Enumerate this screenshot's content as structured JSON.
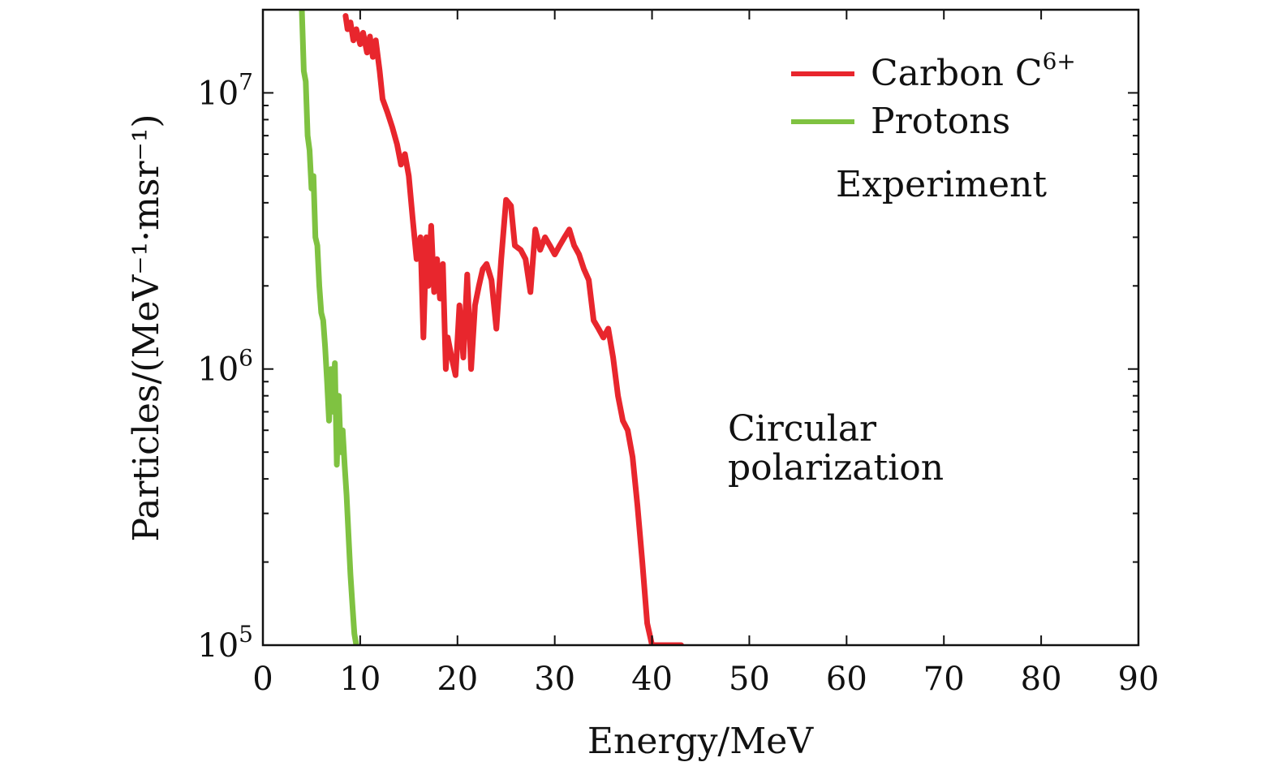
{
  "chart_data": {
    "type": "line",
    "title": "",
    "xlabel": "Energy/MeV",
    "ylabel": "Particles/(MeV⁻¹·msr⁻¹)",
    "xlim": [
      0,
      90
    ],
    "ylim": [
      100000,
      20000000
    ],
    "y_scale": "log",
    "x_ticks": [
      0,
      10,
      20,
      30,
      40,
      50,
      60,
      70,
      80,
      90
    ],
    "y_ticks": [
      {
        "value": 100000,
        "base": "10",
        "exp": "5"
      },
      {
        "value": 1000000,
        "base": "10",
        "exp": "6"
      },
      {
        "value": 10000000,
        "base": "10",
        "exp": "7"
      }
    ],
    "grid": false,
    "legend_position": "top-right",
    "annotations": [
      "Experiment",
      "Circular",
      "polarization"
    ],
    "series": [
      {
        "name": "Carbon C",
        "name_sup": "6+",
        "color": "#e8262d",
        "x": [
          8.5,
          8.7,
          9.0,
          9.3,
          9.6,
          10.0,
          10.3,
          10.7,
          11.0,
          11.3,
          11.6,
          12.0,
          12.3,
          12.8,
          13.3,
          13.8,
          14.2,
          14.6,
          15.0,
          15.4,
          15.8,
          16.2,
          16.5,
          16.8,
          17.0,
          17.3,
          17.6,
          17.9,
          18.2,
          18.5,
          18.8,
          19.0,
          19.4,
          19.8,
          20.2,
          20.6,
          21.0,
          21.4,
          21.8,
          22.2,
          22.6,
          23.0,
          23.5,
          24.0,
          24.5,
          25.0,
          25.5,
          25.9,
          26.5,
          27.0,
          27.5,
          28.0,
          28.5,
          29.0,
          29.5,
          30.0,
          30.5,
          31.0,
          31.5,
          32.0,
          32.5,
          33.0,
          33.5,
          34.0,
          34.5,
          35.0,
          35.5,
          36.0,
          36.5,
          37.0,
          37.5,
          38.0,
          38.5,
          39.0,
          39.5,
          40.0,
          40.5,
          41.0,
          41.5,
          42.0,
          42.5,
          43.0
        ],
        "y": [
          19000000,
          17000000,
          18000000,
          15500000,
          17000000,
          15000000,
          16500000,
          14000000,
          16000000,
          13500000,
          15500000,
          12000000,
          9500000,
          8500000,
          7500000,
          6500000,
          5500000,
          6000000,
          5000000,
          3500000,
          2500000,
          3000000,
          1300000,
          3000000,
          2000000,
          3300000,
          1900000,
          2500000,
          1800000,
          2400000,
          1000000,
          1300000,
          1100000,
          950000,
          1700000,
          1100000,
          2200000,
          1000000,
          1700000,
          2000000,
          2300000,
          2400000,
          2100000,
          1400000,
          2500000,
          4100000,
          3900000,
          2800000,
          2700000,
          2500000,
          1900000,
          3200000,
          2700000,
          3000000,
          2800000,
          2600000,
          2800000,
          3000000,
          3200000,
          2800000,
          2600000,
          2300000,
          2100000,
          1500000,
          1400000,
          1300000,
          1400000,
          1100000,
          800000,
          650000,
          600000,
          480000,
          320000,
          200000,
          120000,
          100000,
          100000,
          100000,
          100000,
          100000,
          100000,
          100000
        ]
      },
      {
        "name": "Protons",
        "color": "#7fc241",
        "x": [
          4.0,
          4.2,
          4.4,
          4.6,
          4.8,
          5.0,
          5.2,
          5.4,
          5.6,
          5.8,
          6.0,
          6.2,
          6.4,
          6.6,
          6.8,
          7.0,
          7.2,
          7.4,
          7.6,
          7.8,
          8.0,
          8.2,
          8.4,
          8.6,
          8.8,
          9.0,
          9.2,
          9.4,
          9.6
        ],
        "y": [
          20000000,
          12000000,
          11000000,
          7000000,
          6200000,
          4500000,
          5000000,
          3000000,
          2800000,
          2000000,
          1600000,
          1500000,
          1200000,
          900000,
          650000,
          1000000,
          700000,
          1050000,
          450000,
          800000,
          500000,
          600000,
          450000,
          350000,
          250000,
          180000,
          140000,
          110000,
          100000
        ]
      }
    ]
  }
}
